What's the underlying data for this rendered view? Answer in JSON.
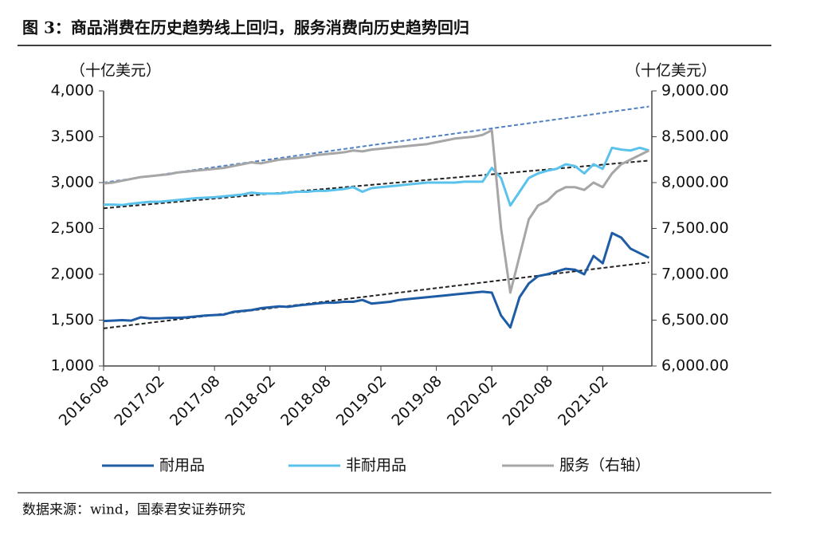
{
  "chart_data": {
    "type": "line",
    "title": "图 3：商品消费在历史趋势线上回归，服务消费向历史趋势回归",
    "y_unit": "（十亿美元）",
    "y2_unit": "（十亿美元）",
    "source": "数据来源：wind，国泰君安证券研究",
    "categories": [
      "2016-08",
      null,
      null,
      null,
      null,
      null,
      "2017-02",
      null,
      null,
      null,
      null,
      null,
      "2017-08",
      null,
      null,
      null,
      null,
      null,
      "2018-02",
      null,
      null,
      null,
      null,
      null,
      "2018-08",
      null,
      null,
      null,
      null,
      null,
      "2019-02",
      null,
      null,
      null,
      null,
      null,
      "2019-08",
      null,
      null,
      null,
      null,
      null,
      "2020-02",
      null,
      null,
      null,
      null,
      null,
      "2020-08",
      null,
      null,
      null,
      null,
      null,
      "2021-02",
      null,
      null,
      null,
      null,
      null
    ],
    "series": [
      {
        "name": "耐用品",
        "color": "#1f5ca6",
        "axis": "y",
        "values": [
          1490,
          1495,
          1500,
          1495,
          1530,
          1520,
          1520,
          1525,
          1525,
          1530,
          1540,
          1550,
          1555,
          1560,
          1590,
          1600,
          1610,
          1630,
          1640,
          1650,
          1645,
          1660,
          1670,
          1680,
          1690,
          1690,
          1700,
          1700,
          1720,
          1680,
          1690,
          1700,
          1720,
          1730,
          1740,
          1750,
          1760,
          1770,
          1780,
          1790,
          1800,
          1810,
          1800,
          1550,
          1420,
          1750,
          1900,
          1980,
          2000,
          2030,
          2060,
          2050,
          2000,
          2200,
          2120,
          2450,
          2400,
          2280,
          2230,
          2180
        ]
      },
      {
        "name": "非耐用品",
        "color": "#5bc2ec",
        "axis": "y",
        "values": [
          2760,
          2760,
          2755,
          2770,
          2780,
          2790,
          2790,
          2800,
          2810,
          2820,
          2830,
          2835,
          2840,
          2850,
          2860,
          2870,
          2890,
          2880,
          2880,
          2880,
          2890,
          2900,
          2900,
          2910,
          2910,
          2920,
          2930,
          2950,
          2900,
          2940,
          2950,
          2960,
          2970,
          2980,
          2990,
          3000,
          3000,
          3000,
          3000,
          3010,
          3010,
          3010,
          3160,
          3050,
          2750,
          2900,
          3050,
          3100,
          3130,
          3150,
          3200,
          3180,
          3100,
          3200,
          3150,
          3380,
          3360,
          3350,
          3380,
          3350
        ]
      },
      {
        "name": "服务（右轴）",
        "color": "#a6a6a6",
        "axis": "y2",
        "values": [
          7990,
          8000,
          8020,
          8040,
          8060,
          8070,
          8080,
          8090,
          8110,
          8120,
          8130,
          8140,
          8150,
          8160,
          8180,
          8200,
          8220,
          8210,
          8230,
          8250,
          8260,
          8270,
          8280,
          8300,
          8310,
          8320,
          8330,
          8350,
          8340,
          8360,
          8370,
          8380,
          8390,
          8400,
          8410,
          8420,
          8440,
          8460,
          8480,
          8490,
          8500,
          8520,
          8570,
          7500,
          6800,
          7200,
          7600,
          7750,
          7800,
          7900,
          7950,
          7950,
          7920,
          8000,
          7950,
          8100,
          8200,
          8250,
          8300,
          8350
        ]
      }
    ],
    "trend_lines": [
      {
        "color": "#4f81c4",
        "axis": "y2",
        "values": [
          8000,
          8830
        ]
      },
      {
        "color": "#222222",
        "axis": "y",
        "values": [
          2720,
          3240
        ]
      },
      {
        "color": "#222222",
        "axis": "y",
        "values": [
          1410,
          2130
        ]
      }
    ],
    "ylim": [
      1000,
      4000
    ],
    "yticks": [
      {
        "value": 1000,
        "label": "1,000"
      },
      {
        "value": 1500,
        "label": "1,500"
      },
      {
        "value": 2000,
        "label": "2,000"
      },
      {
        "value": 2500,
        "label": "2,500"
      },
      {
        "value": 3000,
        "label": "3,000"
      },
      {
        "value": 3500,
        "label": "3,500"
      },
      {
        "value": 4000,
        "label": "4,000"
      }
    ],
    "y2lim": [
      6000,
      9000
    ],
    "y2ticks": [
      {
        "value": 6000,
        "label": "6,000.00"
      },
      {
        "value": 6500,
        "label": "6,500.00"
      },
      {
        "value": 7000,
        "label": "7,000.00"
      },
      {
        "value": 7500,
        "label": "7,500.00"
      },
      {
        "value": 8000,
        "label": "8,000.00"
      },
      {
        "value": 8500,
        "label": "8,500.00"
      },
      {
        "value": 9000,
        "label": "9,000.00"
      }
    ]
  }
}
